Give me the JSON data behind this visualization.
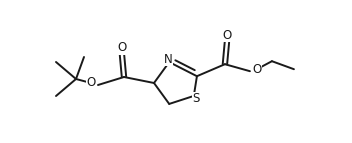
{
  "bg_color": "#ffffff",
  "line_color": "#1a1a1a",
  "line_width": 1.4,
  "dbo": 0.022,
  "figsize": [
    3.52,
    1.43
  ],
  "dpi": 100,
  "xlim": [
    0,
    3.52
  ],
  "ylim": [
    0,
    1.43
  ]
}
